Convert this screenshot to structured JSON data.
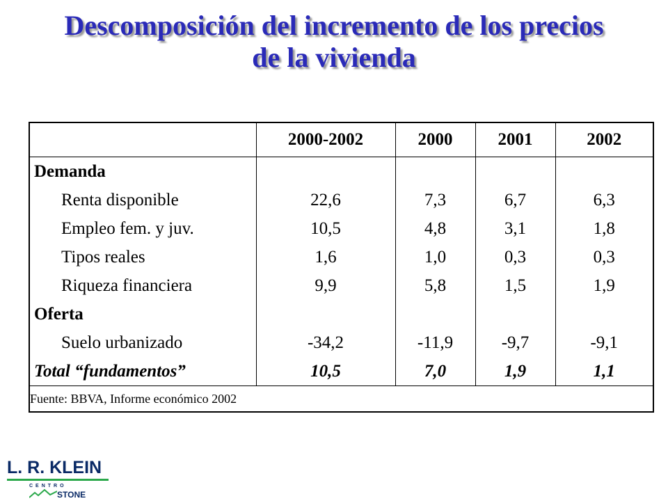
{
  "title": {
    "line1": "Descomposición del incremento de los precios",
    "line2": "de la vivienda"
  },
  "table": {
    "columns": [
      "",
      "2000-2002",
      "2000",
      "2001",
      "2002"
    ],
    "rows": [
      {
        "label": "Demanda",
        "style": "bold",
        "indent": false,
        "values": [
          "",
          "",
          "",
          ""
        ]
      },
      {
        "label": "Renta disponible",
        "style": "normal",
        "indent": true,
        "values": [
          "22,6",
          "7,3",
          "6,7",
          "6,3"
        ]
      },
      {
        "label": "Empleo fem. y juv.",
        "style": "normal",
        "indent": true,
        "values": [
          "10,5",
          "4,8",
          "3,1",
          "1,8"
        ]
      },
      {
        "label": "Tipos reales",
        "style": "normal",
        "indent": true,
        "values": [
          "1,6",
          "1,0",
          "0,3",
          "0,3"
        ]
      },
      {
        "label": "Riqueza financiera",
        "style": "normal",
        "indent": true,
        "values": [
          "9,9",
          "5,8",
          "1,5",
          "1,9"
        ]
      },
      {
        "label": "Oferta",
        "style": "bold",
        "indent": false,
        "values": [
          "",
          "",
          "",
          ""
        ]
      },
      {
        "label": "Suelo urbanizado",
        "style": "normal",
        "indent": true,
        "values": [
          "-34,2",
          "-11,9",
          "-9,7",
          "-9,1"
        ]
      },
      {
        "label": "Total “fundamentos”",
        "style": "bolditalic",
        "indent": false,
        "values": [
          "10,5",
          "7,0",
          "1,9",
          "1,1"
        ]
      }
    ],
    "source": "Fuente: BBVA, Informe económico 2002"
  },
  "logo": {
    "name": "L. R. KLEIN",
    "subtitle": "CENTRO",
    "brand": "STONE"
  },
  "colors": {
    "title": "#2a2ab8",
    "logo_primary": "#0a2a66",
    "logo_accent": "#2aa84a"
  }
}
